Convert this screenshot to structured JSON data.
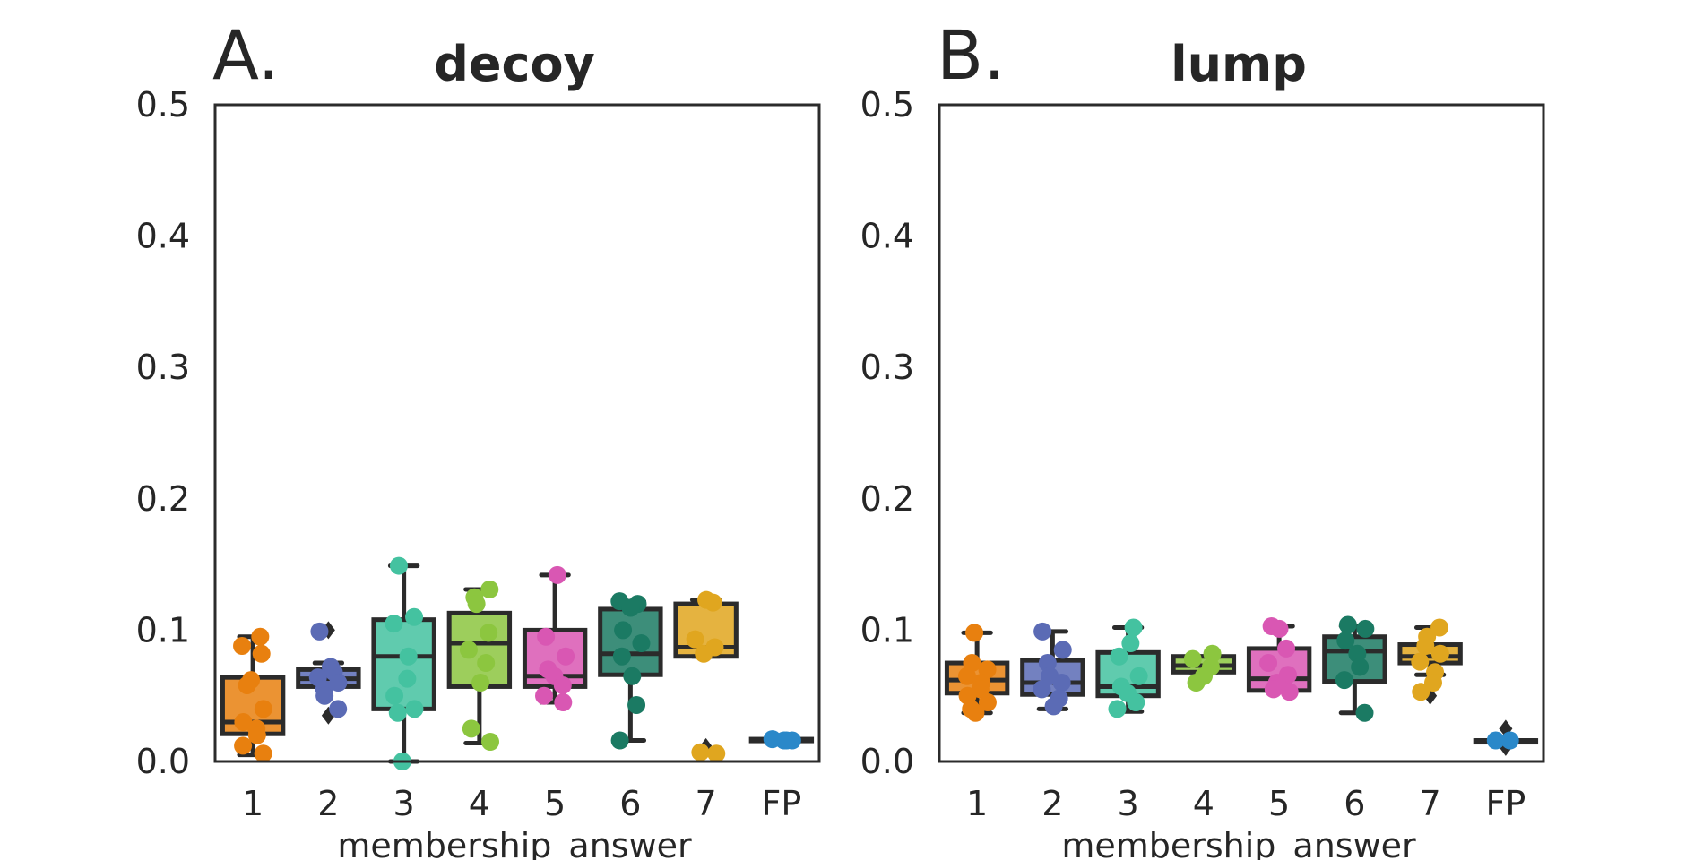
{
  "figure": {
    "panels": [
      {
        "letter": "A."
      },
      {
        "letter": "B."
      }
    ]
  },
  "chart_data": [
    {
      "type": "box",
      "title": "decoy",
      "xlabel": "membership_answer",
      "ylabel": "",
      "categories": [
        "1",
        "2",
        "3",
        "4",
        "5",
        "6",
        "7",
        "FP"
      ],
      "ylim": [
        0,
        0.5
      ],
      "yticks": [
        0.0,
        0.1,
        0.2,
        0.3,
        0.4,
        0.5
      ],
      "grid": false,
      "legend": "none",
      "boxes": [
        {
          "category": "1",
          "color": "#e8800f",
          "min": 0.005,
          "q1": 0.021,
          "median": 0.03,
          "q3": 0.064,
          "max": 0.095,
          "outliers": [],
          "points": [
            0.095,
            0.088,
            0.082,
            0.062,
            0.058,
            0.04,
            0.03,
            0.025,
            0.02,
            0.012,
            0.006
          ]
        },
        {
          "category": "2",
          "color": "#5b6bb5",
          "min": 0.057,
          "q1": 0.057,
          "median": 0.063,
          "q3": 0.07,
          "max": 0.075,
          "outliers": [
            0.1,
            0.035
          ],
          "points": [
            0.099,
            0.072,
            0.068,
            0.064,
            0.06,
            0.055,
            0.05,
            0.04
          ]
        },
        {
          "category": "3",
          "color": "#44c2a0",
          "min": 0.0,
          "q1": 0.04,
          "median": 0.08,
          "q3": 0.108,
          "max": 0.149,
          "outliers": [],
          "points": [
            0.149,
            0.11,
            0.105,
            0.08,
            0.063,
            0.05,
            0.04,
            0.037,
            0.0
          ]
        },
        {
          "category": "4",
          "color": "#8cc63f",
          "min": 0.014,
          "q1": 0.057,
          "median": 0.09,
          "q3": 0.113,
          "max": 0.131,
          "outliers": [],
          "points": [
            0.131,
            0.125,
            0.12,
            0.098,
            0.085,
            0.075,
            0.06,
            0.025,
            0.015
          ]
        },
        {
          "category": "5",
          "color": "#d957b3",
          "min": 0.045,
          "q1": 0.057,
          "median": 0.065,
          "q3": 0.1,
          "max": 0.142,
          "outliers": [],
          "points": [
            0.142,
            0.095,
            0.08,
            0.07,
            0.065,
            0.058,
            0.05,
            0.045
          ]
        },
        {
          "category": "6",
          "color": "#1b7a63",
          "min": 0.016,
          "q1": 0.066,
          "median": 0.082,
          "q3": 0.116,
          "max": 0.122,
          "outliers": [],
          "points": [
            0.122,
            0.12,
            0.117,
            0.1,
            0.09,
            0.08,
            0.065,
            0.043,
            0.016
          ]
        },
        {
          "category": "7",
          "color": "#e0a61f",
          "min": 0.08,
          "q1": 0.08,
          "median": 0.087,
          "q3": 0.12,
          "max": 0.123,
          "outliers": [
            0.011
          ],
          "points": [
            0.123,
            0.121,
            0.093,
            0.087,
            0.082,
            0.007,
            0.006
          ]
        },
        {
          "category": "FP",
          "color": "#2a88c9",
          "min": 0.016,
          "q1": 0.016,
          "median": 0.016,
          "q3": 0.017,
          "max": 0.017,
          "outliers": [],
          "points": [
            0.016,
            0.017,
            0.016,
            0.016
          ]
        }
      ]
    },
    {
      "type": "box",
      "title": "lump",
      "xlabel": "membership_answer",
      "ylabel": "",
      "categories": [
        "1",
        "2",
        "3",
        "4",
        "5",
        "6",
        "7",
        "FP"
      ],
      "ylim": [
        0,
        0.5
      ],
      "yticks": [
        0.0,
        0.1,
        0.2,
        0.3,
        0.4,
        0.5
      ],
      "grid": false,
      "legend": "none",
      "boxes": [
        {
          "category": "1",
          "color": "#e8800f",
          "min": 0.037,
          "q1": 0.052,
          "median": 0.062,
          "q3": 0.075,
          "max": 0.098,
          "outliers": [],
          "points": [
            0.098,
            0.075,
            0.07,
            0.065,
            0.06,
            0.055,
            0.05,
            0.045,
            0.04,
            0.037
          ]
        },
        {
          "category": "2",
          "color": "#5b6bb5",
          "min": 0.04,
          "q1": 0.051,
          "median": 0.06,
          "q3": 0.077,
          "max": 0.099,
          "outliers": [],
          "points": [
            0.099,
            0.085,
            0.075,
            0.065,
            0.06,
            0.055,
            0.048,
            0.042
          ]
        },
        {
          "category": "3",
          "color": "#44c2a0",
          "min": 0.038,
          "q1": 0.05,
          "median": 0.057,
          "q3": 0.083,
          "max": 0.102,
          "outliers": [],
          "points": [
            0.102,
            0.09,
            0.08,
            0.065,
            0.057,
            0.052,
            0.045,
            0.04
          ]
        },
        {
          "category": "4",
          "color": "#8cc63f",
          "min": 0.068,
          "q1": 0.068,
          "median": 0.073,
          "q3": 0.08,
          "max": 0.08,
          "outliers": [],
          "points": [
            0.082,
            0.078,
            0.072,
            0.065,
            0.06
          ]
        },
        {
          "category": "5",
          "color": "#d957b3",
          "min": 0.054,
          "q1": 0.054,
          "median": 0.063,
          "q3": 0.086,
          "max": 0.103,
          "outliers": [],
          "points": [
            0.103,
            0.101,
            0.086,
            0.075,
            0.066,
            0.06,
            0.055,
            0.053
          ]
        },
        {
          "category": "6",
          "color": "#1b7a63",
          "min": 0.037,
          "q1": 0.061,
          "median": 0.084,
          "q3": 0.095,
          "max": 0.103,
          "outliers": [],
          "points": [
            0.104,
            0.101,
            0.092,
            0.082,
            0.072,
            0.062,
            0.037
          ]
        },
        {
          "category": "7",
          "color": "#e0a61f",
          "min": 0.066,
          "q1": 0.075,
          "median": 0.08,
          "q3": 0.089,
          "max": 0.102,
          "outliers": [
            0.05
          ],
          "points": [
            0.102,
            0.095,
            0.088,
            0.082,
            0.076,
            0.068,
            0.06,
            0.053
          ]
        },
        {
          "category": "FP",
          "color": "#2a88c9",
          "min": 0.016,
          "q1": 0.016,
          "median": 0.016,
          "q3": 0.016,
          "max": 0.016,
          "outliers": [
            0.025,
            0.011
          ],
          "points": [
            0.016,
            0.016
          ]
        }
      ]
    }
  ]
}
